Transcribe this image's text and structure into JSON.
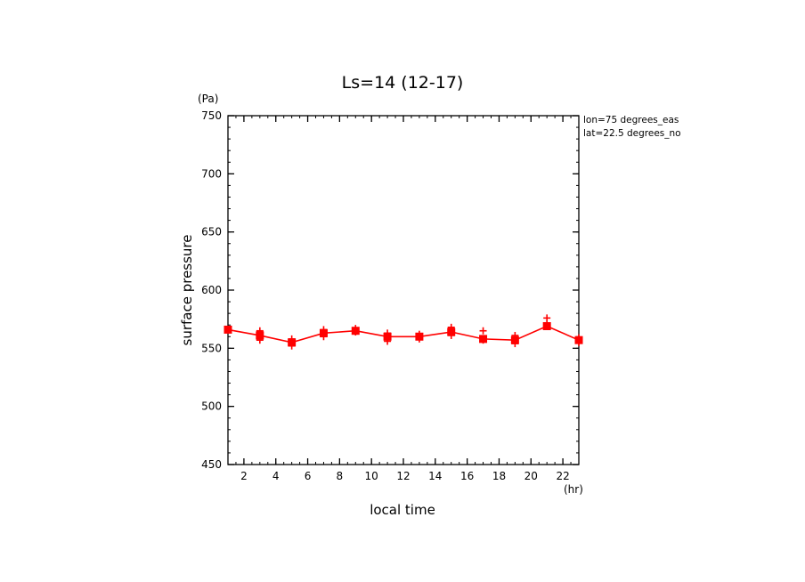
{
  "chart_data": {
    "type": "line",
    "title": "Ls=14 (12-17)",
    "xlabel": "local time",
    "ylabel": "surface pressure",
    "x_unit": "(hr)",
    "y_unit": "(Pa)",
    "xlim": [
      1,
      23
    ],
    "ylim": [
      450,
      750
    ],
    "x_ticks": [
      2,
      4,
      6,
      8,
      10,
      12,
      14,
      16,
      18,
      20,
      22
    ],
    "y_ticks": [
      450,
      500,
      550,
      600,
      650,
      700,
      750
    ],
    "grid": false,
    "annotations": [
      "lon=75 degrees_eas",
      "lat=22.5 degrees_no"
    ],
    "series": [
      {
        "color": "#ff0000",
        "x": [
          1,
          3,
          5,
          7,
          9,
          11,
          13,
          15,
          17,
          19,
          21,
          23
        ],
        "values": [
          566,
          561,
          555,
          563,
          565,
          560,
          560,
          564,
          558,
          557,
          569,
          557
        ]
      }
    ],
    "scatter_plus": [
      {
        "x": 3,
        "y": 565
      },
      {
        "x": 3,
        "y": 557
      },
      {
        "x": 5,
        "y": 558
      },
      {
        "x": 5,
        "y": 552
      },
      {
        "x": 7,
        "y": 566
      },
      {
        "x": 7,
        "y": 560
      },
      {
        "x": 9,
        "y": 567
      },
      {
        "x": 9,
        "y": 564
      },
      {
        "x": 11,
        "y": 563
      },
      {
        "x": 11,
        "y": 556
      },
      {
        "x": 13,
        "y": 562
      },
      {
        "x": 13,
        "y": 558
      },
      {
        "x": 15,
        "y": 568
      },
      {
        "x": 15,
        "y": 561
      },
      {
        "x": 17,
        "y": 565
      },
      {
        "x": 17,
        "y": 557
      },
      {
        "x": 19,
        "y": 561
      },
      {
        "x": 19,
        "y": 554
      },
      {
        "x": 21,
        "y": 576
      },
      {
        "x": 21,
        "y": 571
      },
      {
        "x": 23,
        "y": 559
      },
      {
        "x": 23,
        "y": 555
      }
    ]
  }
}
